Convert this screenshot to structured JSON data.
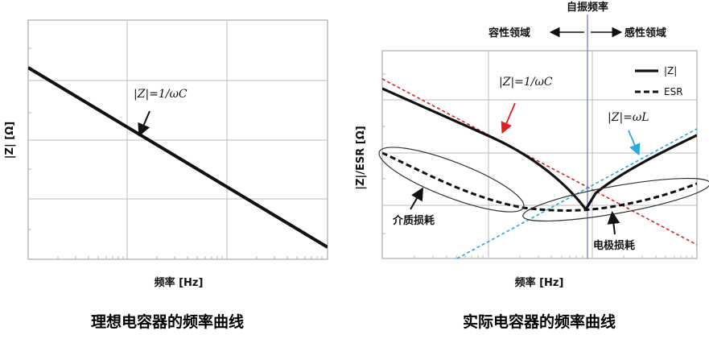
{
  "left_chart": {
    "y_axis_label": "|Z| [Ω]",
    "x_axis_label": "频率 [Hz]",
    "curve_label": "|Z|=1/ωC",
    "caption": "理想电容器的频率曲线"
  },
  "right_chart": {
    "y_axis_label": "|Z|/ESR [Ω]",
    "x_axis_label": "频率 [Hz]",
    "resonance_label": "自振频率",
    "capacitive_region": "容性领域",
    "inductive_region": "感性领域",
    "legend": [
      {
        "label": "|Z|",
        "style": "solid"
      },
      {
        "label": "ESR",
        "style": "dashed"
      }
    ],
    "capacitor_label": "|Z|=1/ωC",
    "inductor_label": "|Z|=ωL",
    "dielectric_loss_label": "介质损耗",
    "electrode_loss_label": "电极损耗",
    "caption": "实际电容器的频率曲线"
  },
  "colors": {
    "capacitive_line": "#e02020",
    "inductive_line": "#2aa8e0",
    "resonance_line": "#6c7fbf",
    "grid": "#bbbbbb"
  }
}
